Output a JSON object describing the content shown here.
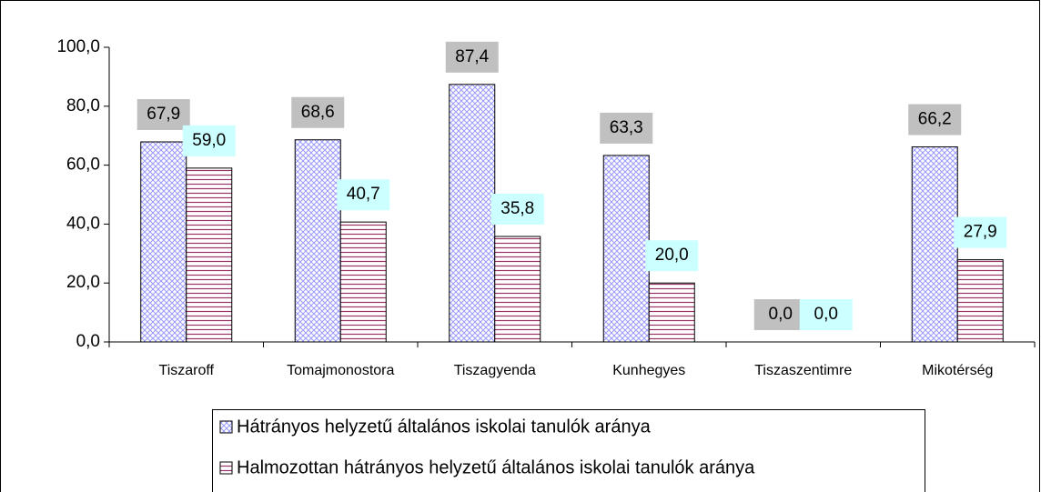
{
  "chart_data": {
    "type": "bar",
    "categories": [
      "Tiszaroff",
      "Tomajmonostora",
      "Tiszagyenda",
      "Kunhegyes",
      "Tiszaszentimre",
      "Mikotérség"
    ],
    "series": [
      {
        "name": "Hátrányos helyzetű általános iskolai tanulók aránya",
        "color": "#9999ff",
        "values": [
          67.9,
          68.6,
          87.4,
          63.3,
          0.0,
          66.2
        ],
        "value_labels": [
          "67,9",
          "68,6",
          "87,4",
          "63,3",
          "0,0",
          "66,2"
        ]
      },
      {
        "name": "Halmozottan hátrányos helyzetű általános iskolai tanulók aránya",
        "color": "#993366",
        "values": [
          59.0,
          40.7,
          35.8,
          20.0,
          0.0,
          27.9
        ],
        "value_labels": [
          "59,0",
          "40,7",
          "35,8",
          "20,0",
          "0,0",
          "27,9"
        ]
      }
    ],
    "ylim": [
      0,
      100
    ],
    "yticks": [
      {
        "value": 0,
        "label": "0,0"
      },
      {
        "value": 20,
        "label": "20,0"
      },
      {
        "value": 40,
        "label": "40,0"
      },
      {
        "value": 60,
        "label": "60,0"
      },
      {
        "value": 80,
        "label": "80,0"
      },
      {
        "value": 100,
        "label": "100,0"
      }
    ],
    "legend": "bottom"
  }
}
